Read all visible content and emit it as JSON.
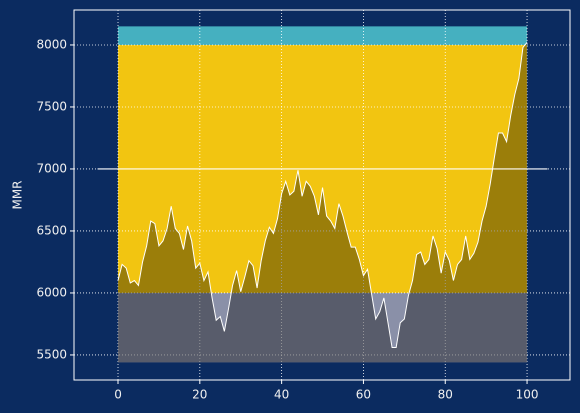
{
  "chart_data": {
    "type": "line",
    "y_label": "MMR",
    "x": [
      0,
      1,
      2,
      3,
      4,
      5,
      6,
      7,
      8,
      9,
      10,
      11,
      12,
      13,
      14,
      15,
      16,
      17,
      18,
      19,
      20,
      21,
      22,
      23,
      24,
      25,
      26,
      27,
      28,
      29,
      30,
      31,
      32,
      33,
      34,
      35,
      36,
      37,
      38,
      39,
      40,
      41,
      42,
      43,
      44,
      45,
      46,
      47,
      48,
      49,
      50,
      51,
      52,
      53,
      54,
      55,
      56,
      57,
      58,
      59,
      60,
      61,
      62,
      63,
      64,
      65,
      66,
      67,
      68,
      69,
      70,
      71,
      72,
      73,
      74,
      75,
      76,
      77,
      78,
      79,
      80,
      81,
      82,
      83,
      84,
      85,
      86,
      87,
      88,
      89,
      90,
      91,
      92,
      93,
      94,
      95,
      96,
      97,
      98,
      99,
      100
    ],
    "series": [
      {
        "color": "#ffffff",
        "fill_opacity": 0.36,
        "values": [
          6100,
          6230,
          6200,
          6080,
          6100,
          6060,
          6250,
          6380,
          6580,
          6560,
          6380,
          6420,
          6520,
          6700,
          6520,
          6480,
          6350,
          6540,
          6420,
          6200,
          6240,
          6100,
          6170,
          5960,
          5780,
          5810,
          5690,
          5870,
          6060,
          6180,
          6010,
          6130,
          6260,
          6220,
          6040,
          6260,
          6420,
          6530,
          6480,
          6600,
          6800,
          6900,
          6790,
          6820,
          6990,
          6780,
          6900,
          6860,
          6780,
          6630,
          6850,
          6620,
          6580,
          6520,
          6720,
          6620,
          6490,
          6370,
          6370,
          6270,
          6140,
          6190,
          5990,
          5790,
          5850,
          5960,
          5760,
          5560,
          5560,
          5760,
          5790,
          5980,
          6100,
          6310,
          6330,
          6230,
          6270,
          6460,
          6360,
          6160,
          6330,
          6260,
          6100,
          6230,
          6270,
          6460,
          6270,
          6320,
          6410,
          6580,
          6700,
          6880,
          7090,
          7290,
          7290,
          7220,
          7430,
          7600,
          7730,
          7980,
          8020
        ]
      }
    ],
    "bands": [
      {
        "from": 5440,
        "to": 6000,
        "color": "#8a90a8"
      },
      {
        "from": 6000,
        "to": 8000,
        "color": "#f2c511"
      },
      {
        "from": 8000,
        "to": 8150,
        "color": "#45b0c0"
      }
    ],
    "band_x": [
      0,
      100
    ],
    "hline": {
      "value": 7000,
      "xmin": -5,
      "xmax": 105,
      "color": "#ffffff"
    },
    "xlim": [
      -10.76,
      110.5
    ],
    "ylim": [
      5298,
      8282
    ],
    "xticks": [
      0,
      20,
      40,
      60,
      80,
      100
    ],
    "yticks": [
      5500,
      6000,
      6500,
      7000,
      7500,
      8000
    ],
    "grid": true,
    "background": "#0b2b60"
  }
}
